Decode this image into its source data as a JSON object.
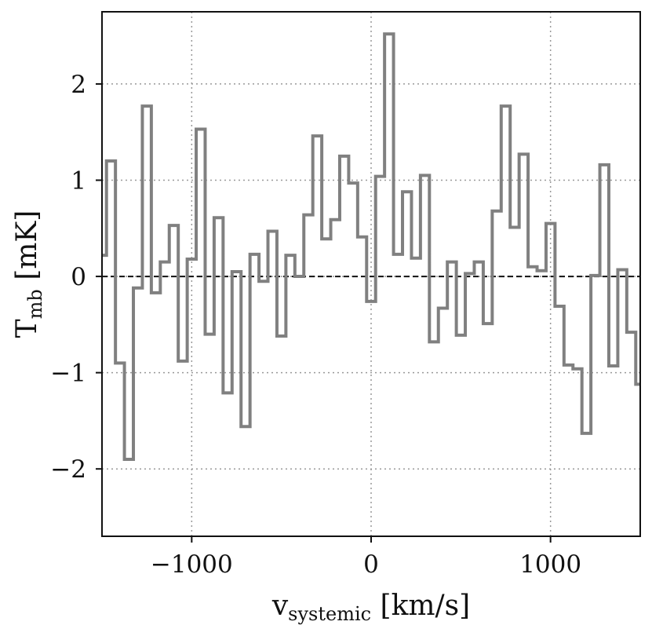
{
  "chart_data": {
    "type": "line",
    "drawstyle": "steps-mid",
    "title": "",
    "xlabel": {
      "main": "v",
      "sub": "systemic",
      "unit": " [km/s]"
    },
    "ylabel": {
      "main": "T",
      "sub": "mb",
      "unit": " [mK]"
    },
    "xlim": [
      -1500,
      1500
    ],
    "ylim": [
      -2.7,
      2.75
    ],
    "xticks": [
      -1000,
      0,
      1000
    ],
    "xtick_labels": [
      "−1000",
      "0",
      "1000"
    ],
    "yticks": [
      -2,
      -1,
      0,
      1,
      2
    ],
    "ytick_labels": [
      "−2",
      "−1",
      "0",
      "1",
      "2"
    ],
    "grid": true,
    "zero_line": true,
    "series": [
      {
        "color": "#808080",
        "x": [
          -1500,
          -1450,
          -1400,
          -1350,
          -1300,
          -1250,
          -1200,
          -1150,
          -1100,
          -1050,
          -1000,
          -950,
          -900,
          -850,
          -800,
          -750,
          -700,
          -650,
          -600,
          -550,
          -500,
          -450,
          -400,
          -350,
          -300,
          -250,
          -200,
          -150,
          -100,
          -50,
          0,
          50,
          100,
          150,
          200,
          250,
          300,
          350,
          400,
          450,
          500,
          550,
          600,
          650,
          700,
          750,
          800,
          850,
          900,
          950,
          1000,
          1050,
          1100,
          1150,
          1200,
          1250,
          1300,
          1350,
          1400,
          1450,
          1500
        ],
        "y": [
          0.22,
          1.2,
          -0.9,
          -1.9,
          -0.12,
          1.77,
          -0.17,
          0.15,
          0.53,
          -0.88,
          0.18,
          1.53,
          -0.6,
          0.61,
          -1.21,
          0.05,
          -1.56,
          0.23,
          -0.05,
          0.47,
          -0.62,
          0.22,
          0.0,
          0.64,
          1.46,
          0.39,
          0.59,
          1.25,
          0.97,
          0.41,
          -0.26,
          1.04,
          2.52,
          0.23,
          0.88,
          0.19,
          1.05,
          -0.68,
          -0.33,
          0.15,
          -0.61,
          0.03,
          0.15,
          -0.49,
          0.68,
          1.77,
          0.51,
          1.27,
          0.1,
          0.06,
          0.55,
          -0.31,
          -0.92,
          -0.96,
          -1.63,
          0.01,
          1.16,
          -0.93,
          0.07,
          -0.58,
          -1.12
        ]
      }
    ]
  }
}
